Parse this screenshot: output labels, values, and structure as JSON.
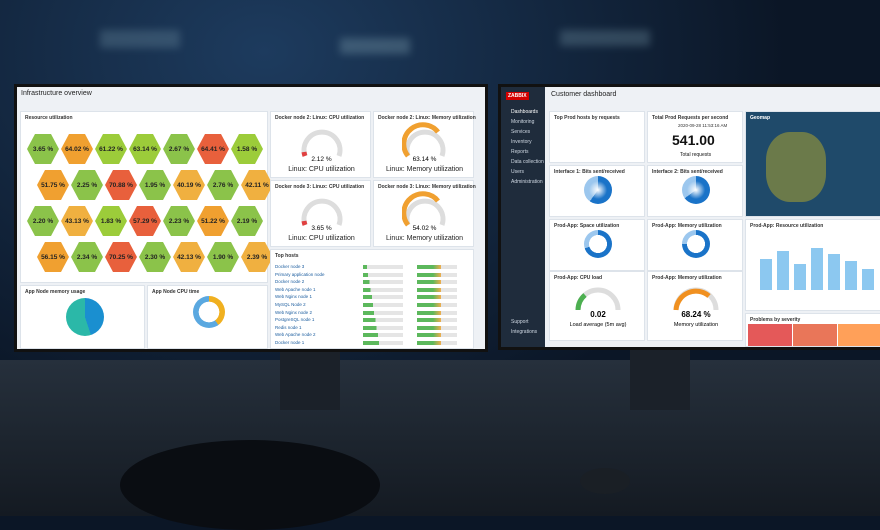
{
  "left_screen": {
    "title": "Infrastructure overview",
    "resource_panel": {
      "title": "Resource utilization",
      "hexes": [
        {
          "value": "3.65 %",
          "color": "#8bc34a"
        },
        {
          "value": "64.02 %",
          "color": "#f0a030"
        },
        {
          "value": "61.22 %",
          "color": "#9ccc3a"
        },
        {
          "value": "63.14 %",
          "color": "#9ccc3a"
        },
        {
          "value": "2.67 %",
          "color": "#8bc34a"
        },
        {
          "value": "64.41 %",
          "color": "#e8603c"
        },
        {
          "value": "1.58 %",
          "color": "#9ccc3a"
        },
        {
          "value": "51.75 %",
          "color": "#f0a030"
        },
        {
          "value": "2.25 %",
          "color": "#8bc34a"
        },
        {
          "value": "70.88 %",
          "color": "#e8603c"
        },
        {
          "value": "1.95 %",
          "color": "#8bc34a"
        },
        {
          "value": "40.19 %",
          "color": "#f0b040"
        },
        {
          "value": "2.76 %",
          "color": "#8bc34a"
        },
        {
          "value": "42.11 %",
          "color": "#f0b040"
        },
        {
          "value": "2.20 %",
          "color": "#8bc34a"
        },
        {
          "value": "43.13 %",
          "color": "#f0b040"
        },
        {
          "value": "1.83 %",
          "color": "#9ccc3a"
        },
        {
          "value": "57.29 %",
          "color": "#e8603c"
        },
        {
          "value": "2.23 %",
          "color": "#8bc34a"
        },
        {
          "value": "51.22 %",
          "color": "#f0a030"
        },
        {
          "value": "2.19 %",
          "color": "#8bc34a"
        },
        {
          "value": "56.15 %",
          "color": "#f0a030"
        },
        {
          "value": "2.34 %",
          "color": "#8bc34a"
        },
        {
          "value": "70.25 %",
          "color": "#e8603c"
        },
        {
          "value": "2.30 %",
          "color": "#8bc34a"
        },
        {
          "value": "42.13 %",
          "color": "#f0b040"
        },
        {
          "value": "1.90 %",
          "color": "#8bc34a"
        },
        {
          "value": "2.39 %",
          "color": "#f0b040"
        }
      ]
    },
    "gauges": [
      {
        "title": "Docker node 2: Linux: CPU utilization",
        "value": "2.12 %",
        "label": "Linux: CPU utilization"
      },
      {
        "title": "Docker node 2: Linux: Memory utilization",
        "value": "63.14 %",
        "label": "Linux: Memory utilization"
      },
      {
        "title": "Docker node 3: Linux: CPU utilization",
        "value": "3.65 %",
        "label": "Linux: CPU utilization"
      },
      {
        "title": "Docker node 3: Linux: Memory utilization",
        "value": "54.02 %",
        "label": "Linux: Memory utilization"
      }
    ],
    "top_hosts": {
      "title": "Top hosts",
      "hosts": [
        "Docker node 3",
        "Primary application node",
        "Docker node 2",
        "Web Apache node 1",
        "Web Nginx node 1",
        "MySQL Node 2",
        "Web Nginx node 2",
        "PostgreSQL node 1",
        "Redis node 1",
        "Web Apache node 2",
        "Docker node 1"
      ]
    },
    "memory_panel": {
      "title": "App Node memory usage"
    },
    "cpu_panel": {
      "title": "App Node CPU time"
    }
  },
  "right_screen": {
    "logo": "ZABBIX",
    "title": "Customer dashboard",
    "menu": [
      "Dashboards",
      "Monitoring",
      "Services",
      "Inventory",
      "Reports",
      "Data collection",
      "Users",
      "Administration"
    ],
    "menu_bottom": [
      "Support",
      "Integrations"
    ],
    "top_prod": {
      "title": "Top Prod hosts by requests"
    },
    "total": {
      "title": "Total Prod Requests per second",
      "time": "2020-09-28 11:53:16 AM",
      "value": "541.00",
      "label": "Total requests"
    },
    "geomap": {
      "title": "Geomap"
    },
    "panels": [
      "Interface 1: Bits sent/received",
      "Interface 2: Bits sent/received",
      "Prod-App: Space utilization",
      "Prod-App: Memory utilization"
    ],
    "resource": {
      "title": "Prod-App: Resource utilization"
    },
    "cpu_load": {
      "title": "Prod-App: CPU load",
      "value": "0.02",
      "label": "Load average (5m avg)"
    },
    "mem_gauge": {
      "title": "Prod-App: Memory utilization",
      "value": "68.24 %",
      "label": "Memory utilization"
    },
    "problems": {
      "title": "Problems by severity"
    }
  }
}
